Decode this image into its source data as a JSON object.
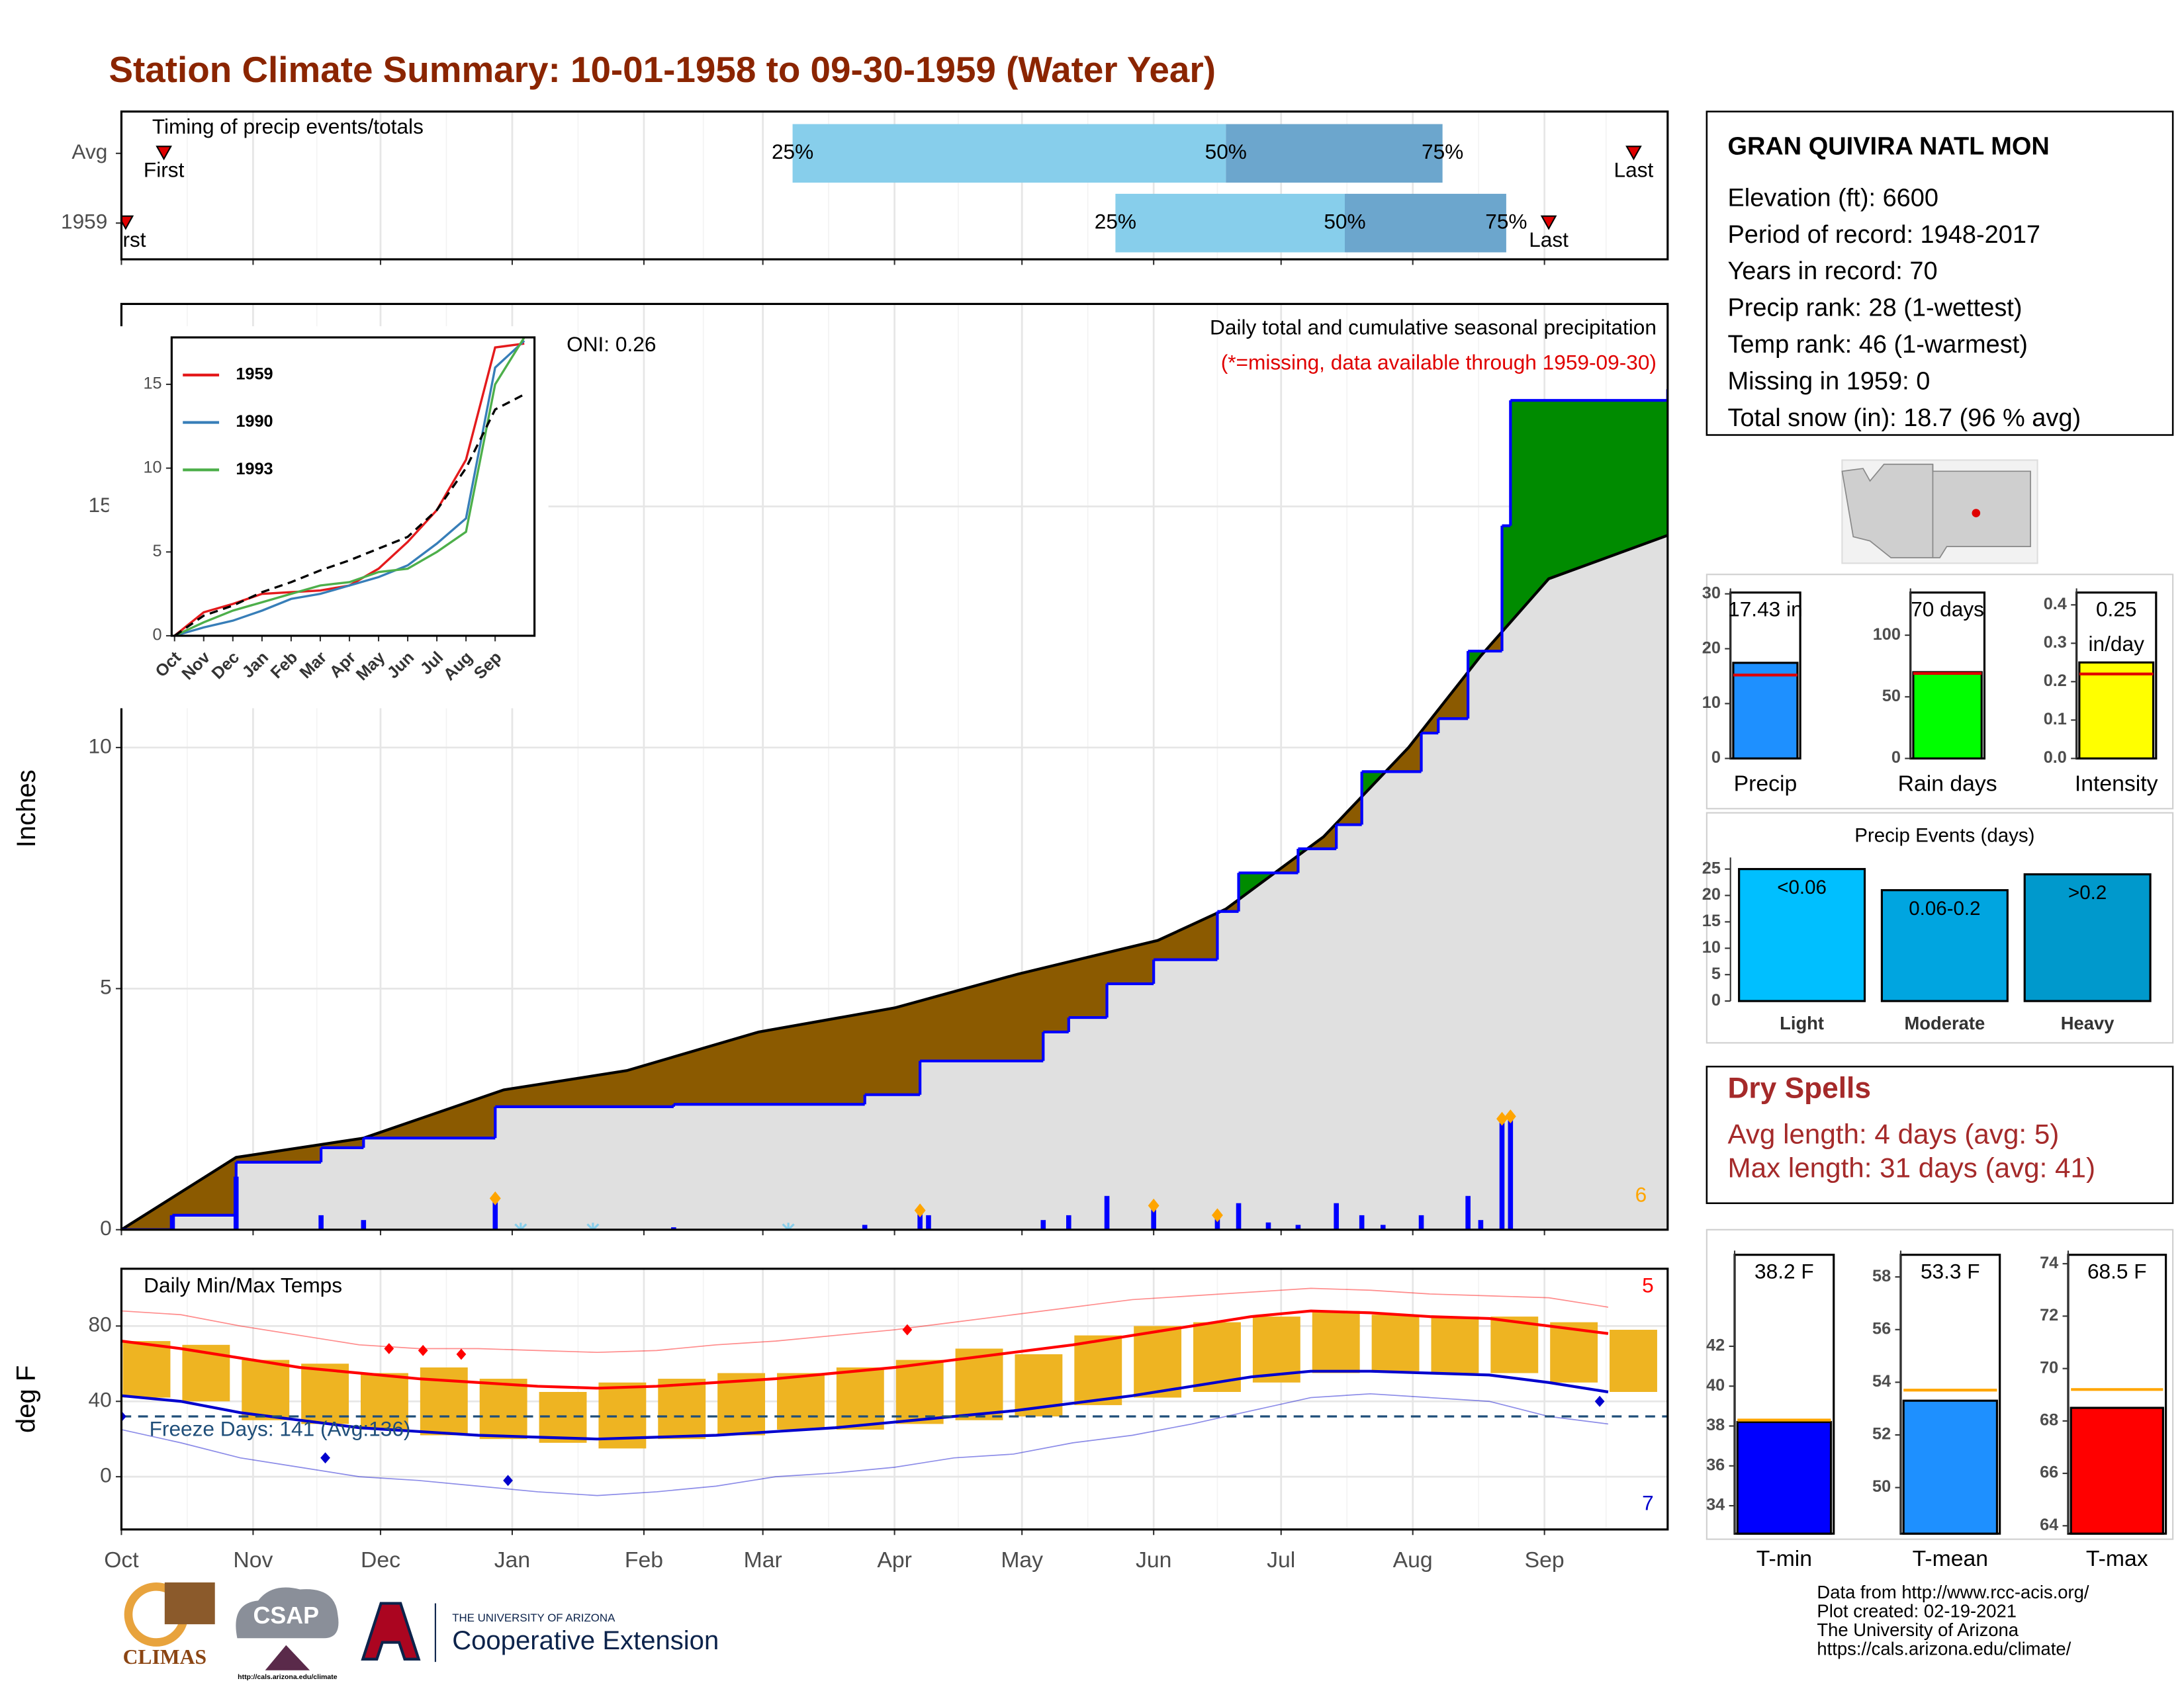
{
  "title": "Station Climate Summary: 10-01-1958 to 09-30-1959 (Water Year)",
  "station": {
    "name": "GRAN QUIVIRA NATL MON",
    "lines": [
      "Elevation (ft): 6600",
      "Period of record: 1948-2017",
      "Years in record: 70",
      "Precip rank: 28 (1-wettest)",
      "Temp rank: 46 (1-warmest)",
      "Missing in 1959: 0",
      "Total snow (in): 18.7 (96 % avg)"
    ]
  },
  "dry_spells": {
    "title": "Dry Spells",
    "lines": [
      "Avg length: 4 days (avg: 5)",
      "Max length: 31 days (avg: 41)"
    ]
  },
  "footer": [
    "Data from http://www.rcc-acis.org/",
    "Plot created: 02-19-2021",
    "The University of Arizona",
    "https://cals.arizona.edu/climate/"
  ],
  "logos": [
    "CLIMAS",
    "CSAP",
    "http://cals.arizona.edu/climate",
    "THE UNIVERSITY OF ARIZONA",
    "Cooperative Extension"
  ],
  "chart_data": [
    {
      "type": "timing",
      "title": "Timing of precip events/totals",
      "categories": [
        "Avg",
        "1959"
      ],
      "first": [
        10,
        1
      ],
      "q25": [
        158,
        234
      ],
      "q50": [
        260,
        288
      ],
      "q75": [
        311,
        326
      ],
      "last": [
        356,
        336
      ],
      "first_label": "First",
      "last_label": "Last",
      "q_labels": [
        "25%",
        "50%",
        "75%"
      ],
      "colors": [
        "#87ceeb",
        "#6ca6cd"
      ],
      "marker_color": "#e00000",
      "xlim": [
        0,
        364
      ],
      "xticks": [
        0,
        31,
        61,
        92,
        123,
        151,
        182,
        212,
        243,
        273,
        304,
        335
      ]
    },
    {
      "type": "cumulative",
      "subtitle": "Daily total and cumulative seasonal precipitation",
      "note": "(*=missing, data available through 1959-09-30)",
      "oni": "ONI: 0.26",
      "snow_count": 6,
      "ylabel": "Inches",
      "avg_x": [
        0,
        27,
        57,
        90,
        119,
        150,
        182,
        211,
        244,
        260,
        283,
        303,
        320,
        336,
        364
      ],
      "avg_values": [
        0,
        1.5,
        1.9,
        2.9,
        3.3,
        4.1,
        4.6,
        5.3,
        6.0,
        6.65,
        8.15,
        10.0,
        11.9,
        13.5,
        14.4
      ],
      "x": [
        0,
        12,
        27,
        47,
        57,
        88,
        130,
        175,
        188,
        217,
        223,
        232,
        243,
        258,
        263,
        277,
        286,
        292,
        306,
        310,
        317,
        325,
        327,
        364
      ],
      "values": [
        0,
        0.3,
        1.4,
        1.7,
        1.9,
        2.55,
        2.6,
        2.8,
        3.5,
        4.1,
        4.4,
        5.1,
        5.6,
        6.6,
        7.4,
        7.9,
        8.4,
        9.5,
        10.3,
        10.6,
        12.0,
        14.6,
        17.2,
        17.43
      ],
      "daily_x": [
        12,
        27,
        47,
        57,
        88,
        130,
        175,
        188,
        190,
        217,
        223,
        232,
        243,
        258,
        263,
        270,
        277,
        286,
        292,
        297,
        306,
        317,
        320,
        325,
        327
      ],
      "daily_values": [
        0.3,
        1.1,
        0.3,
        0.2,
        0.65,
        0.05,
        0.1,
        0.4,
        0.3,
        0.2,
        0.3,
        0.7,
        0.5,
        0.3,
        0.55,
        0.15,
        0.1,
        0.55,
        0.3,
        0.1,
        0.3,
        0.7,
        0.2,
        2.3,
        2.35
      ],
      "snow_days": [
        4,
        7,
        12,
        13,
        23,
        24
      ],
      "trace_x": [
        94,
        111,
        157
      ],
      "color": "#0000ff",
      "avg_color": "#000000",
      "below_color": "#8b5a00",
      "above_color": "#008b00",
      "fill_color": "#e0e0e0",
      "snow_color": "#ffa500",
      "trace_color": "#87ceeb",
      "xlim": [
        0,
        364
      ],
      "xticks": [
        0,
        31,
        61,
        92,
        123,
        151,
        182,
        212,
        243,
        273,
        304,
        335
      ],
      "ylim": [
        0,
        19.2
      ],
      "yticks": [
        0,
        5,
        10,
        15
      ]
    },
    {
      "type": "line",
      "x": [
        0,
        1,
        2,
        3,
        4,
        5,
        6,
        7,
        8,
        9,
        10,
        11,
        12
      ],
      "xlim": [
        -0.1,
        12.35
      ],
      "xticks": [
        {
          "value": 0,
          "label": "Oct"
        },
        {
          "value": 1,
          "label": "Nov"
        },
        {
          "value": 2,
          "label": "Dec"
        },
        {
          "value": 3,
          "label": "Jan"
        },
        {
          "value": 4,
          "label": "Feb"
        },
        {
          "value": 5,
          "label": "Mar"
        },
        {
          "value": 6,
          "label": "Apr"
        },
        {
          "value": 7,
          "label": "May"
        },
        {
          "value": 8,
          "label": "Jun"
        },
        {
          "value": 9,
          "label": "Jul"
        },
        {
          "value": 10,
          "label": "Aug"
        },
        {
          "value": 11,
          "label": "Sep"
        }
      ],
      "ylim": [
        0,
        17.8
      ],
      "yticks": [
        0,
        5,
        10,
        15
      ],
      "series": [
        {
          "name": "1959",
          "color": "#e41a1c",
          "values": [
            0,
            1.4,
            1.9,
            2.5,
            2.6,
            2.7,
            3.0,
            4.0,
            5.6,
            7.5,
            10.5,
            17.2,
            17.43
          ]
        },
        {
          "name": "1990",
          "color": "#377eb8",
          "values": [
            0,
            0.5,
            0.9,
            1.5,
            2.2,
            2.5,
            3.0,
            3.5,
            4.2,
            5.5,
            7.0,
            16.0,
            17.6
          ]
        },
        {
          "name": "1993",
          "color": "#4daf4a",
          "values": [
            0,
            0.8,
            1.5,
            2.0,
            2.5,
            3.0,
            3.2,
            3.8,
            4.0,
            5.0,
            6.2,
            15.0,
            17.8
          ]
        }
      ],
      "avg_values": [
        0,
        1.2,
        1.8,
        2.6,
        3.2,
        3.9,
        4.5,
        5.2,
        5.9,
        7.5,
        10.0,
        13.5,
        14.4
      ],
      "avg_color": "#000000"
    },
    {
      "type": "temps",
      "title": "Daily Min/Max Temps",
      "ylabel": "deg F",
      "freeze": 32,
      "freeze_label": "Freeze Days: 141 (Avg:136)",
      "hot_count": 5,
      "cold_count": 7,
      "x": [
        0,
        14,
        28,
        42,
        56,
        70,
        84,
        98,
        112,
        126,
        140,
        154,
        168,
        182,
        196,
        210,
        224,
        238,
        252,
        266,
        280,
        294,
        308,
        322,
        336,
        350
      ],
      "max": [
        72,
        70,
        62,
        60,
        55,
        58,
        52,
        45,
        50,
        52,
        55,
        55,
        58,
        62,
        68,
        65,
        75,
        80,
        82,
        85,
        88,
        86,
        85,
        85,
        82,
        78
      ],
      "min": [
        42,
        40,
        30,
        28,
        25,
        22,
        20,
        18,
        15,
        20,
        22,
        25,
        25,
        28,
        30,
        32,
        38,
        42,
        45,
        50,
        55,
        56,
        55,
        55,
        50,
        45
      ],
      "avg_max": [
        72,
        68,
        63,
        58,
        55,
        52,
        50,
        48,
        47,
        48,
        50,
        52,
        55,
        58,
        62,
        66,
        70,
        75,
        80,
        85,
        88,
        87,
        85,
        84,
        80,
        76
      ],
      "avg_min": [
        43,
        40,
        34,
        30,
        26,
        24,
        22,
        21,
        20,
        21,
        22,
        24,
        26,
        29,
        32,
        35,
        39,
        43,
        48,
        53,
        56,
        56,
        55,
        54,
        50,
        45
      ],
      "record_max": [
        88,
        86,
        80,
        75,
        70,
        68,
        68,
        67,
        66,
        67,
        70,
        72,
        75,
        78,
        82,
        86,
        90,
        94,
        96,
        98,
        100,
        99,
        97,
        96,
        95,
        90
      ],
      "record_min": [
        25,
        18,
        10,
        5,
        0,
        -2,
        -5,
        -8,
        -10,
        -8,
        -5,
        0,
        2,
        5,
        10,
        12,
        18,
        22,
        28,
        35,
        42,
        44,
        42,
        40,
        32,
        28
      ],
      "record_highs": {
        "x": [
          63,
          71,
          80,
          185
        ],
        "values": [
          68,
          67,
          65,
          78
        ]
      },
      "record_lows": {
        "x": [
          0,
          48,
          91,
          348
        ],
        "values": [
          32,
          10,
          -2,
          40
        ]
      },
      "bar_color": "#eeb422",
      "max_color": "#ff0000",
      "min_color": "#0000cd",
      "freeze_color": "#1f4e79",
      "xlim": [
        0,
        364
      ],
      "xticks": [
        {
          "value": 0,
          "label": "Oct"
        },
        {
          "value": 31,
          "label": "Nov"
        },
        {
          "value": 61,
          "label": "Dec"
        },
        {
          "value": 92,
          "label": "Jan"
        },
        {
          "value": 123,
          "label": "Feb"
        },
        {
          "value": 151,
          "label": "Mar"
        },
        {
          "value": 182,
          "label": "Apr"
        },
        {
          "value": 212,
          "label": "May"
        },
        {
          "value": 243,
          "label": "Jun"
        },
        {
          "value": 273,
          "label": "Jul"
        },
        {
          "value": 304,
          "label": "Aug"
        },
        {
          "value": 335,
          "label": "Sep"
        }
      ],
      "ylim": [
        -28,
        110.4
      ],
      "yticks": [
        0,
        40,
        80
      ]
    },
    {
      "type": "gauge",
      "label": "Precip",
      "value": 17.43,
      "avg": 15.2,
      "value_label": [
        "17.43 in"
      ],
      "color": "#1e90ff",
      "avg_color": "#e00000",
      "ylim": [
        0,
        31
      ],
      "yticks": [
        0,
        10,
        20,
        30
      ]
    },
    {
      "type": "gauge",
      "label": "Rain days",
      "value": 70,
      "avg": 69,
      "value_label": [
        "70 days"
      ],
      "color": "#00ff00",
      "avg_color": "#e00000",
      "ylim": [
        0,
        138
      ],
      "yticks": [
        0,
        50,
        100
      ]
    },
    {
      "type": "gauge",
      "label": "Intensity",
      "value": 0.25,
      "avg": 0.22,
      "value_label": [
        "0.25",
        "in/day"
      ],
      "color": "#ffff00",
      "avg_color": "#e00000",
      "ylim": [
        0,
        0.443
      ],
      "yticks": [
        {
          "value": 0,
          "label": "0.0"
        },
        {
          "value": 0.1,
          "label": "0.1"
        },
        {
          "value": 0.2,
          "label": "0.2"
        },
        {
          "value": 0.3,
          "label": "0.3"
        },
        {
          "value": 0.4,
          "label": "0.4"
        }
      ]
    },
    {
      "type": "bar",
      "title": "Precip Events (days)",
      "categories": [
        "Light",
        "Moderate",
        "Heavy"
      ],
      "values": [
        25,
        21,
        24
      ],
      "value_labels": [
        "<0.06",
        "0.06-0.2",
        ">0.2"
      ],
      "colors": [
        "#00bfff",
        "#00a5e0",
        "#0099cc"
      ],
      "ylim": [
        0,
        27.2
      ],
      "yticks": [
        0,
        5,
        10,
        15,
        20,
        25
      ]
    },
    {
      "type": "gauge",
      "label": "T-min",
      "value": 38.2,
      "avg": 38.3,
      "value_label": [
        "38.2 F"
      ],
      "color": "#0000ff",
      "avg_color": "#ffa500",
      "ylim": [
        32.6,
        46.8
      ],
      "yticks": [
        34,
        36,
        38,
        40,
        42
      ]
    },
    {
      "type": "gauge",
      "label": "T-mean",
      "value": 53.3,
      "avg": 53.7,
      "value_label": [
        "53.3 F"
      ],
      "color": "#1e90ff",
      "avg_color": "#ffa500",
      "ylim": [
        48.25,
        59
      ],
      "yticks": [
        50,
        52,
        54,
        56,
        58
      ]
    },
    {
      "type": "gauge",
      "label": "T-max",
      "value": 68.5,
      "avg": 69.2,
      "value_label": [
        "68.5 F"
      ],
      "color": "#ff0000",
      "avg_color": "#ffa500",
      "ylim": [
        63.7,
        74.5
      ],
      "yticks": [
        64,
        66,
        68,
        70,
        72,
        74
      ]
    }
  ]
}
